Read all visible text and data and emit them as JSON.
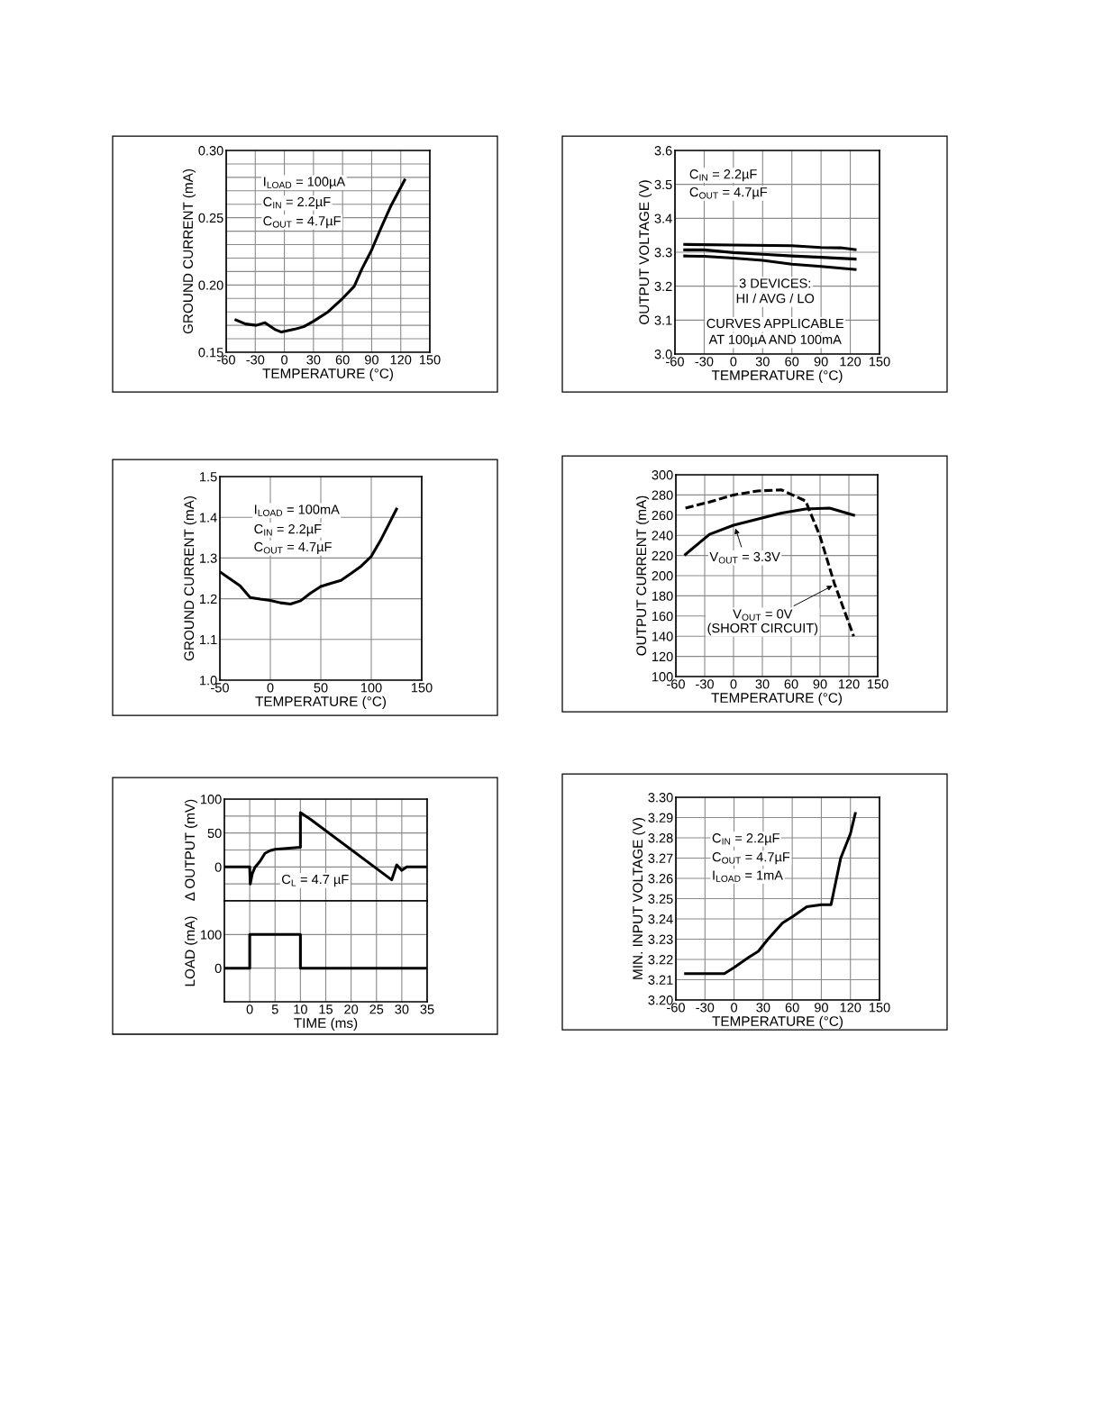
{
  "chart_data": [
    {
      "type": "line",
      "xlabel": "TEMPERATURE (°C)",
      "ylabel": "GROUND CURRENT (mA)",
      "xlim": [
        -60,
        150
      ],
      "ylim": [
        0.15,
        0.3
      ],
      "xticks": [
        -60,
        -30,
        0,
        30,
        60,
        90,
        120,
        150
      ],
      "yticks": [
        {
          "value": 0.15,
          "label": "0.15"
        },
        {
          "value": 0.16,
          "label": null
        },
        {
          "value": 0.17,
          "label": null
        },
        {
          "value": 0.18,
          "label": null
        },
        {
          "value": 0.19,
          "label": null
        },
        {
          "value": 0.2,
          "label": "0.20"
        },
        {
          "value": 0.21,
          "label": null
        },
        {
          "value": 0.22,
          "label": null
        },
        {
          "value": 0.23,
          "label": null
        },
        {
          "value": 0.24,
          "label": null
        },
        {
          "value": 0.25,
          "label": "0.25"
        },
        {
          "value": 0.26,
          "label": null
        },
        {
          "value": 0.27,
          "label": null
        },
        {
          "value": 0.28,
          "label": null
        },
        {
          "value": 0.29,
          "label": null
        },
        {
          "value": 0.3,
          "label": "0.30"
        }
      ],
      "grid": true,
      "series": [
        {
          "color": "#000000",
          "x": [
            -50,
            -40,
            -29,
            -20,
            -10,
            -3,
            10,
            20,
            30,
            45,
            60,
            72,
            80,
            90,
            100,
            110,
            124
          ],
          "values": [
            0.174,
            0.171,
            0.17,
            0.172,
            0.167,
            0.165,
            0.167,
            0.169,
            0.173,
            0.18,
            0.19,
            0.199,
            0.212,
            0.226,
            0.243,
            0.259,
            0.278
          ]
        }
      ],
      "annotations": [
        "I$_{LOAD}$ = 100µA",
        "C$_{IN}$ = 2.2µF",
        "C$_{OUT}$ = 4.7µF"
      ]
    },
    {
      "type": "line",
      "xlabel": "TEMPERATURE (°C)",
      "ylabel": "OUTPUT VOLTAGE (V)",
      "xlim": [
        -60,
        150
      ],
      "ylim": [
        3.0,
        3.6
      ],
      "xticks": [
        -60,
        -30,
        0,
        30,
        60,
        90,
        120,
        150
      ],
      "yticks": [
        {
          "value": 3.0,
          "label": "3.0"
        },
        3.1,
        3.2,
        3.3,
        3.4,
        3.5,
        3.6
      ],
      "grid": true,
      "series": [
        {
          "color": "#000000",
          "x": [
            -50,
            0,
            60,
            90,
            110,
            125
          ],
          "values": [
            3.323,
            3.321,
            3.319,
            3.314,
            3.313,
            3.308
          ]
        },
        {
          "color": "#000000",
          "x": [
            -50,
            -30,
            0,
            30,
            60,
            90,
            125
          ],
          "values": [
            3.307,
            3.307,
            3.299,
            3.294,
            3.289,
            3.285,
            3.28
          ]
        },
        {
          "color": "#000000",
          "x": [
            -50,
            -30,
            0,
            30,
            60,
            90,
            125
          ],
          "values": [
            3.289,
            3.288,
            3.283,
            3.276,
            3.265,
            3.258,
            3.249
          ]
        }
      ],
      "annotations": [
        "C$_{IN}$ = 2.2µF",
        "C$_{OUT}$ = 4.7µF",
        "3 DEVICES:",
        "HI / AVG / LO",
        "CURVES APPLICABLE",
        "AT 100µA AND 100mA"
      ]
    },
    {
      "type": "line",
      "xlabel": "TEMPERATURE (°C)",
      "ylabel": "GROUND CURRENT (mA)",
      "xlim": [
        -50,
        150
      ],
      "ylim": [
        1.0,
        1.5
      ],
      "xticks": [
        -50,
        0,
        50,
        100,
        150
      ],
      "yticks": [
        {
          "value": 1.0,
          "label": "1.0"
        },
        1.1,
        1.2,
        1.3,
        1.4,
        1.5
      ],
      "grid": true,
      "series": [
        {
          "color": "#000000",
          "x": [
            -50,
            -40,
            -30,
            -20,
            -10,
            0,
            10,
            20,
            30,
            40,
            50,
            60,
            70,
            80,
            90,
            100,
            110,
            125
          ],
          "values": [
            1.266,
            1.249,
            1.232,
            1.203,
            1.199,
            1.196,
            1.19,
            1.187,
            1.195,
            1.214,
            1.23,
            1.238,
            1.245,
            1.262,
            1.28,
            1.304,
            1.347,
            1.42
          ]
        }
      ],
      "annotations": [
        "I$_{LOAD}$ = 100mA",
        "C$_{IN}$ = 2.2µF",
        "C$_{OUT}$ = 4.7µF"
      ]
    },
    {
      "type": "line",
      "xlabel": "TEMPERATURE (°C)",
      "ylabel": "OUTPUT CURRENT (mA)",
      "xlim": [
        -60,
        150
      ],
      "ylim": [
        100,
        300
      ],
      "xticks": [
        -60,
        -30,
        0,
        30,
        60,
        90,
        120,
        150
      ],
      "yticks": [
        100,
        120,
        140,
        160,
        180,
        200,
        220,
        240,
        260,
        280,
        300
      ],
      "grid": true,
      "series": [
        {
          "color": "#000000",
          "line_style": "solid",
          "x": [
            -50,
            -25,
            0,
            25,
            50,
            75,
            100,
            125
          ],
          "values": [
            221,
            241,
            250,
            256,
            262,
            266,
            267,
            260
          ]
        },
        {
          "color": "#000000",
          "line_style": "dashed",
          "x": [
            -50,
            -25,
            0,
            25,
            50,
            75,
            90,
            105,
            125
          ],
          "values": [
            267,
            273,
            280,
            284,
            285,
            274,
            239,
            192,
            140
          ]
        }
      ],
      "annotations": [
        {
          "text": "V$_{OUT}$ = 3.3V",
          "x": 2,
          "y": 247
        },
        {
          "text": "V$_{OUT}$ = 0V\n(SHORT CIRCUIT)",
          "x": 103,
          "y": 190
        }
      ]
    },
    {
      "type": "line",
      "ylabel": "Δ OUTPUT (mV)",
      "xlim": [
        -5,
        35
      ],
      "ylim": [
        -50,
        100
      ],
      "xticks": [
        {
          "value": 0,
          "label": null
        },
        {
          "value": 5,
          "label": null
        },
        {
          "value": 10,
          "label": null
        },
        {
          "value": 15,
          "label": null
        },
        {
          "value": 20,
          "label": null
        },
        {
          "value": 25,
          "label": null
        },
        {
          "value": 30,
          "label": null
        },
        {
          "value": 35,
          "label": null
        }
      ],
      "yticks": [
        {
          "value": -25,
          "label": null
        },
        0,
        {
          "value": 25,
          "label": null
        },
        50,
        {
          "value": 75,
          "label": null
        },
        100
      ],
      "grid": true,
      "tick_labels": "y",
      "series": [
        {
          "color": "#000000",
          "x": [
            -5,
            0,
            0.1,
            0.5,
            1,
            2,
            3,
            4,
            5,
            10,
            10,
            12,
            28,
            29,
            30,
            31,
            35
          ],
          "values": [
            0,
            0,
            -25,
            -10,
            -1,
            8,
            20,
            24,
            26,
            29,
            80,
            70,
            -19,
            3,
            -5,
            0,
            0
          ]
        }
      ],
      "annotations": [
        "C$_{L}$ = 4.7 µF"
      ]
    },
    {
      "type": "line",
      "xlabel": "TIME (ms)",
      "ylabel": "LOAD (mA)",
      "xlim": [
        -5,
        35
      ],
      "ylim": [
        -100,
        200
      ],
      "xticks": [
        0,
        5,
        10,
        15,
        20,
        25,
        30,
        35
      ],
      "yticks": [
        0,
        100
      ],
      "grid": true,
      "series": [
        {
          "color": "#000000",
          "x": [
            -5,
            0,
            0,
            10,
            10,
            35
          ],
          "values": [
            0,
            0,
            100,
            100,
            0,
            0
          ]
        }
      ]
    },
    {
      "type": "line",
      "xlabel": "TEMPERATURE (°C)",
      "ylabel": "MIN. INPUT VOLTAGE (V)",
      "xlim": [
        -60,
        150
      ],
      "ylim": [
        3.2,
        3.3
      ],
      "xticks": [
        -60,
        -30,
        0,
        30,
        60,
        90,
        120,
        150
      ],
      "yticks": [
        {
          "value": 3.2,
          "label": "3.20"
        },
        {
          "value": 3.21,
          "label": "3.21"
        },
        {
          "value": 3.22,
          "label": "3.22"
        },
        {
          "value": 3.23,
          "label": "3.23"
        },
        {
          "value": 3.24,
          "label": "3.24"
        },
        {
          "value": 3.25,
          "label": "3.25"
        },
        {
          "value": 3.26,
          "label": "3.26"
        },
        {
          "value": 3.27,
          "label": "3.27"
        },
        {
          "value": 3.28,
          "label": "3.28"
        },
        {
          "value": 3.29,
          "label": "3.29"
        },
        {
          "value": 3.3,
          "label": "3.30"
        }
      ],
      "grid": true,
      "series": [
        {
          "color": "#000000",
          "x": [
            -50,
            -10,
            0,
            15,
            25,
            35,
            50,
            60,
            75,
            90,
            100,
            110,
            120,
            125
          ],
          "values": [
            3.213,
            3.213,
            3.216,
            3.221,
            3.224,
            3.23,
            3.238,
            3.241,
            3.246,
            3.247,
            3.247,
            3.27,
            3.282,
            3.292
          ]
        }
      ],
      "annotations": [
        "C$_{IN}$ = 2.2µF",
        "C$_{OUT}$ = 4.7µF",
        "I$_{LOAD}$ = 1mA"
      ]
    }
  ]
}
